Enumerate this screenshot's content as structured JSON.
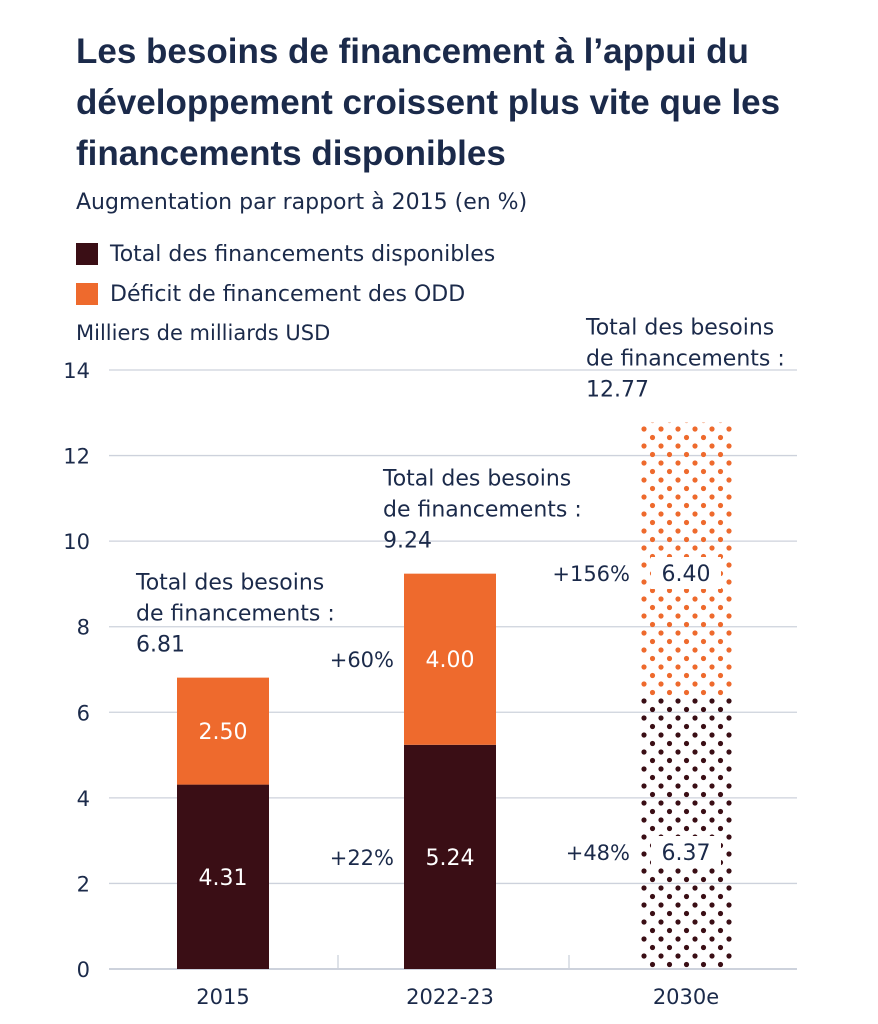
{
  "title": "Les besoins de financement à l’appui du développement croissent plus vite que les financements disponibles",
  "subtitle": "Augmentation par rapport à 2015 (en %)",
  "colors": {
    "available": "#3a0e15",
    "deficit": "#ee6a2d",
    "text": "#1b2a4a",
    "grid": "#cdd2dc"
  },
  "chart_data": {
    "type": "bar",
    "stacked": true,
    "ylabel": "Milliers de milliards USD",
    "ylim": [
      0,
      14
    ],
    "yticks": [
      0,
      2,
      4,
      6,
      8,
      10,
      12,
      14
    ],
    "grid": true,
    "legend_placement": "top-left",
    "categories": [
      "2015",
      "2022-23",
      "2030e"
    ],
    "patterned_categories": [
      "2030e"
    ],
    "series": [
      {
        "name": "Total des financements disponibles",
        "values": [
          4.31,
          5.24,
          6.37
        ],
        "labels": [
          "4.31",
          "5.24",
          "6.37"
        ],
        "changes": [
          "",
          "+22%",
          "+48%"
        ]
      },
      {
        "name": "Déficit de financement des ODD",
        "values": [
          2.5,
          4.0,
          6.4
        ],
        "labels": [
          "2.50",
          "4.00",
          "6.40"
        ],
        "changes": [
          "",
          "+60%",
          "+156%"
        ]
      }
    ],
    "totals": {
      "label_lines": [
        "Total des besoins",
        "de financements :"
      ],
      "values": [
        "6.81",
        "9.24",
        "12.77"
      ]
    }
  }
}
